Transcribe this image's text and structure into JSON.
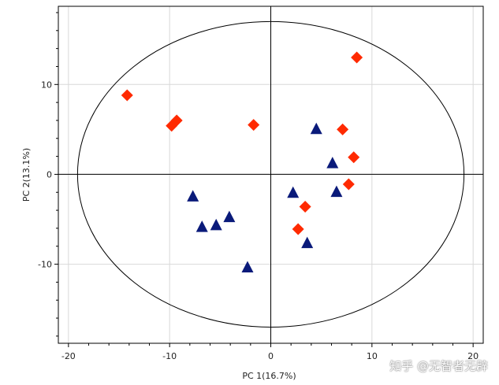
{
  "chart_data": {
    "type": "scatter",
    "title": "",
    "xlabel": "PC 1(16.7%)",
    "ylabel": "PC 2(13.1%)",
    "xlim": [
      -21,
      21
    ],
    "ylim": [
      -18.8,
      18.7
    ],
    "x_ticks": [
      -20,
      -10,
      0,
      10,
      20
    ],
    "y_ticks": [
      -10,
      0,
      10
    ],
    "x_tick_labels": [
      "-20",
      "-10",
      "0",
      "10",
      "20"
    ],
    "y_tick_labels": [
      "-10",
      "0",
      "10"
    ],
    "grid": true,
    "legend": "none",
    "confidence_ellipse": {
      "center": [
        0,
        0
      ],
      "rx": 19.1,
      "ry": 17.0
    },
    "series": [
      {
        "marker": "diamond",
        "color": "#ff2a00",
        "points": [
          [
            -14.2,
            8.8
          ],
          [
            -9.8,
            5.4
          ],
          [
            -9.3,
            6.0
          ],
          [
            -1.7,
            5.5
          ],
          [
            8.5,
            13.0
          ],
          [
            7.1,
            5.0
          ],
          [
            8.2,
            1.9
          ],
          [
            7.7,
            -1.1
          ],
          [
            3.4,
            -3.6
          ],
          [
            2.7,
            -6.1
          ]
        ]
      },
      {
        "marker": "triangle",
        "color": "#0a1a7a",
        "points": [
          [
            -7.7,
            -2.4
          ],
          [
            -6.8,
            -5.8
          ],
          [
            -5.4,
            -5.6
          ],
          [
            -4.1,
            -4.7
          ],
          [
            -2.3,
            -10.3
          ],
          [
            2.2,
            -2.0
          ],
          [
            3.6,
            -7.6
          ],
          [
            4.5,
            5.1
          ],
          [
            6.1,
            1.3
          ],
          [
            6.5,
            -1.9
          ]
        ]
      }
    ]
  },
  "watermark": {
    "text": "知乎 @无智者无辟"
  },
  "colors": {
    "frame": "#000000",
    "grid": "#d8d8d8",
    "ellipse": "#000000"
  }
}
